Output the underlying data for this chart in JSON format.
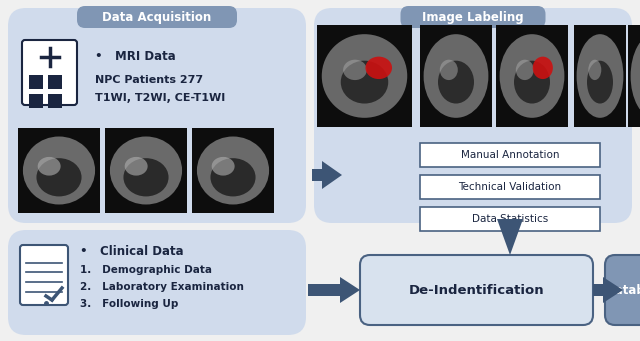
{
  "bg_color": "#f0f0f0",
  "panel_light": "#d0dbec",
  "panel_title_bg": "#8096b4",
  "box_bg": "#ffffff",
  "box_border": "#4a6282",
  "arrow_color": "#3d5575",
  "deident_bg": "#d8e2ee",
  "database_bg": "#8096b4",
  "text_dark": "#1a2540",
  "text_white": "#ffffff",
  "title_da": "Data Acquisition",
  "title_il": "Image Labeling",
  "anno_labels": [
    "Manual Annotation",
    "Technical Validation",
    "Data Statistics"
  ],
  "mri_text1": "•   MRI Data",
  "mri_text2": "NPC Patients 277",
  "mri_text3": "T1WI, T2WI, CE-T1WI",
  "clinical_title": "•   Clinical Data",
  "clinical_items": [
    "1.   Demographic Data",
    "2.   Laboratory Examination",
    "3.   Following Up"
  ],
  "deident_label": "De-Indentification",
  "database_label": "Database"
}
